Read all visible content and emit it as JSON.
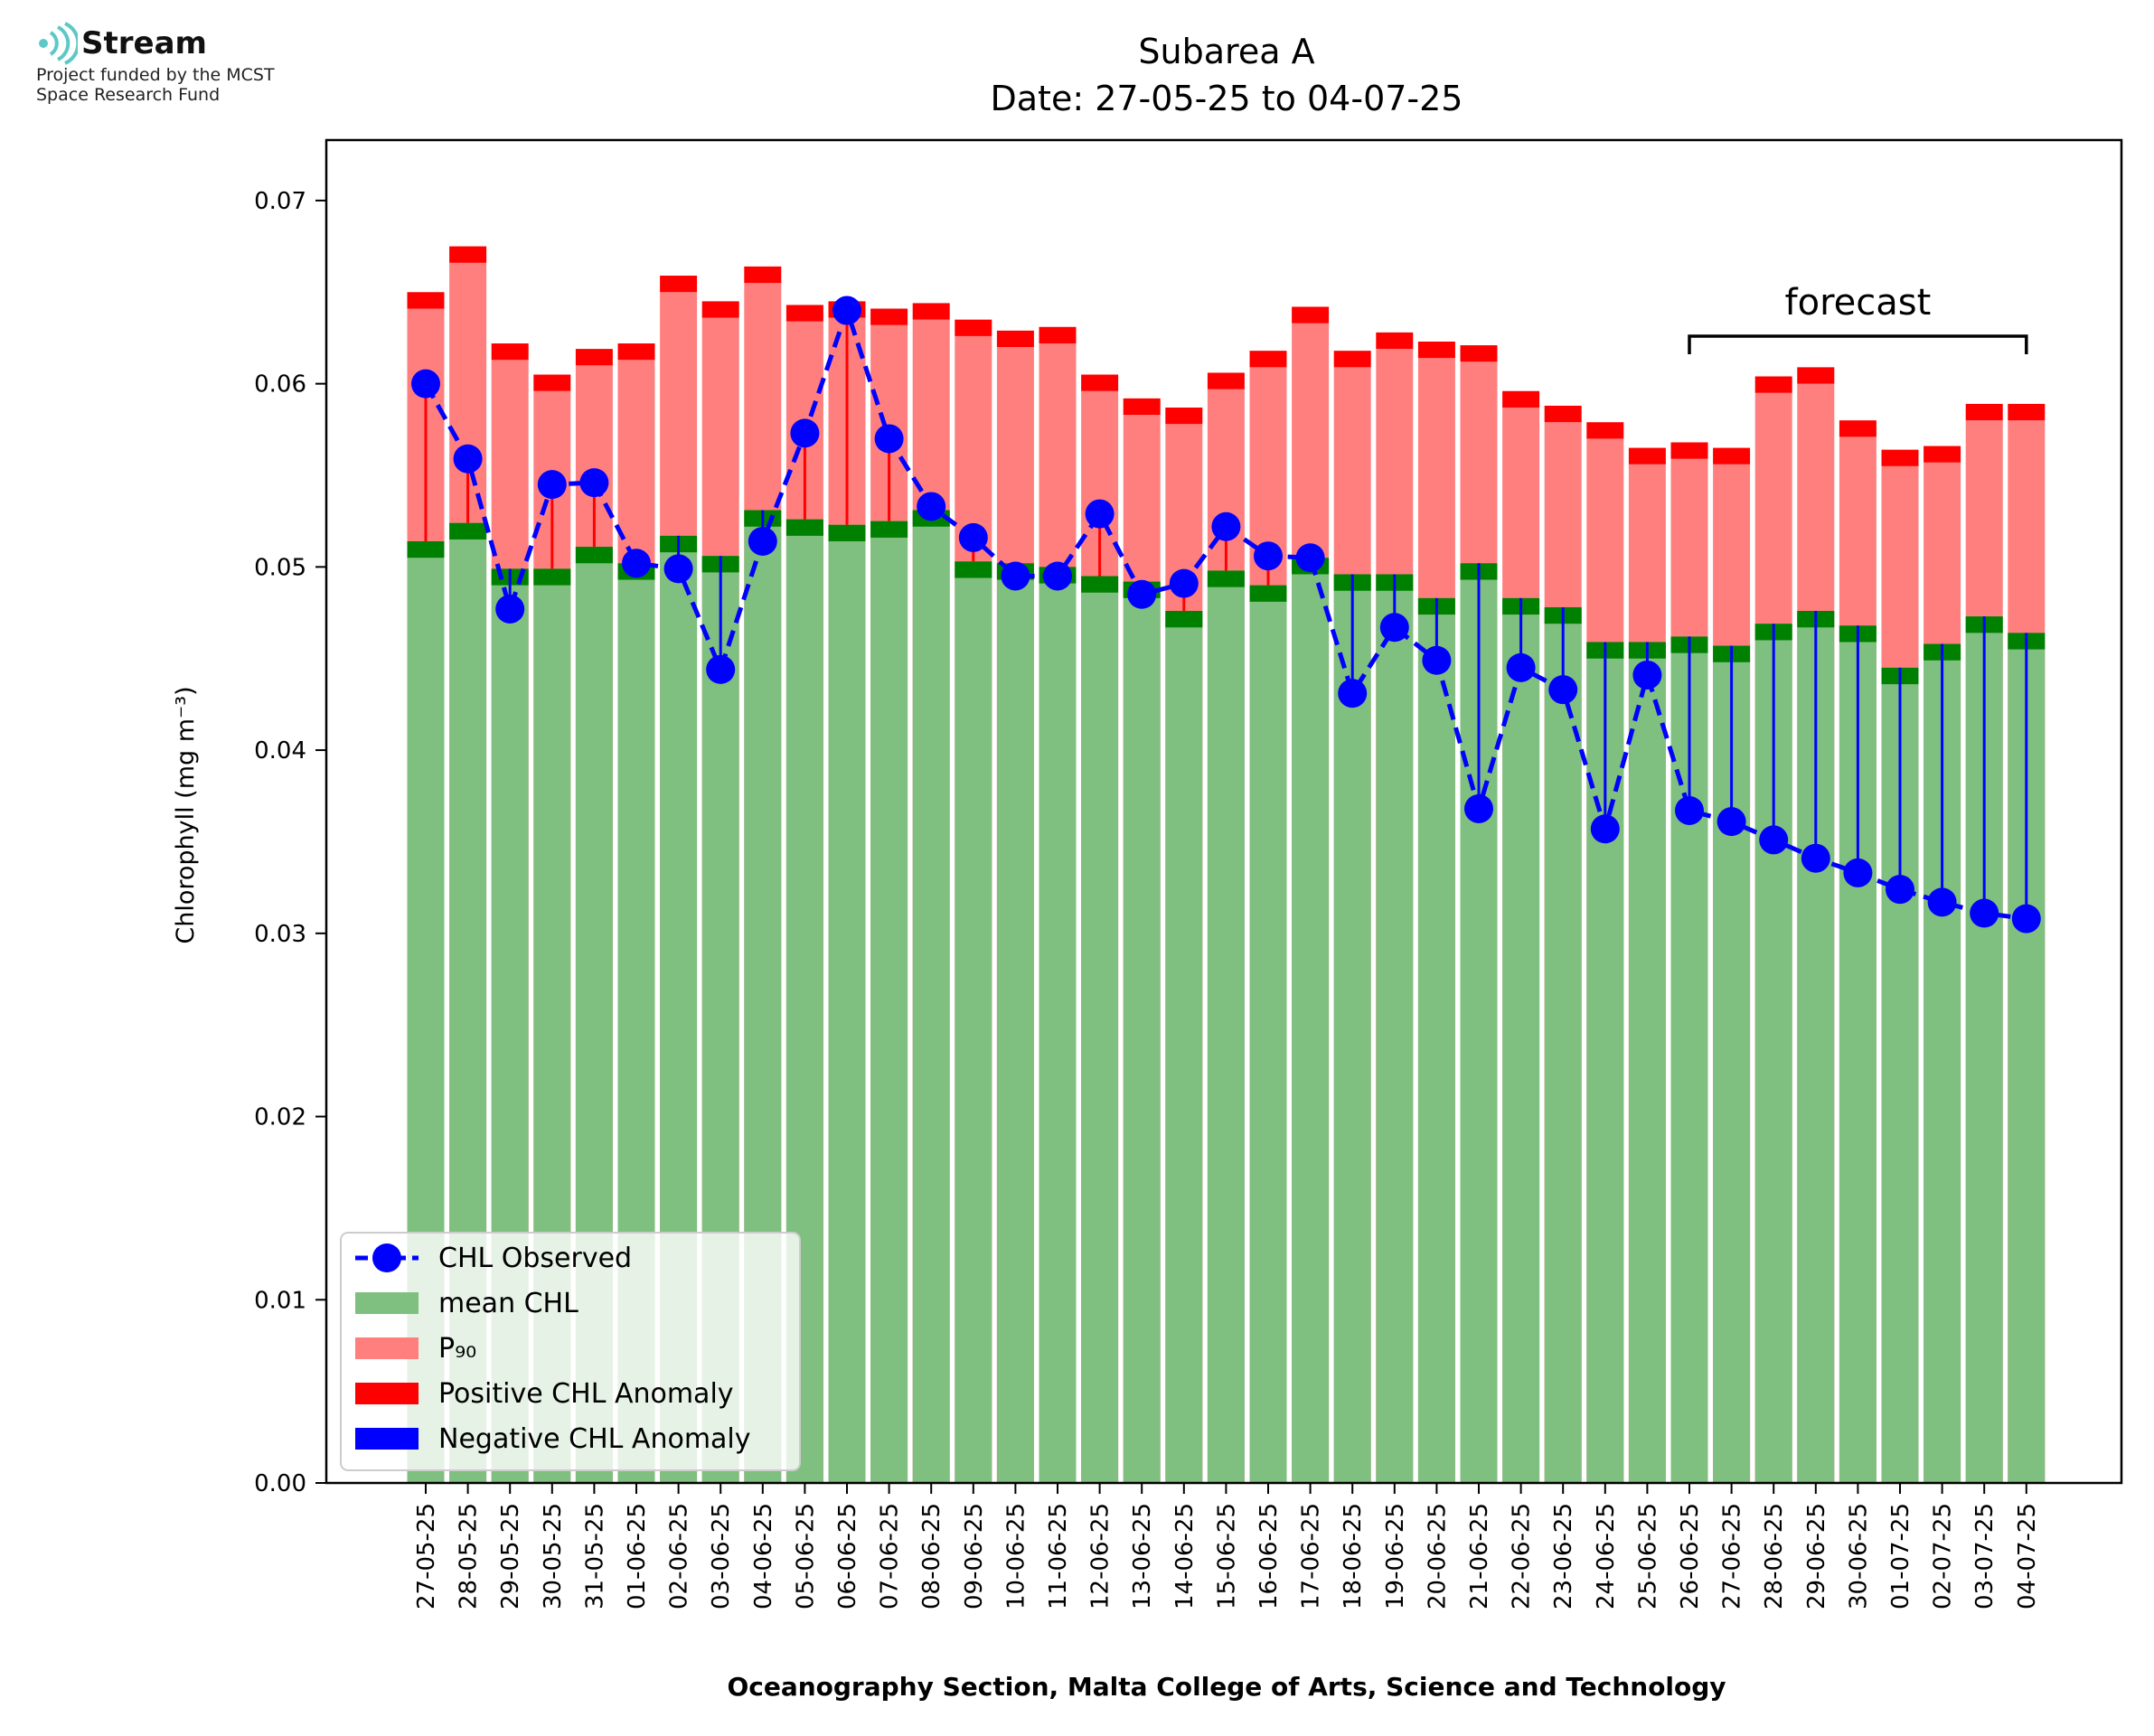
{
  "logo": {
    "brand": "Stream",
    "line1": "Project funded by the MCST",
    "line2": "Space Research Fund"
  },
  "chart_data": {
    "type": "bar",
    "title": "Subarea A",
    "subtitle": "Date: 27-05-25 to 04-07-25",
    "xlabel": "Oceanography Section, Malta College of Arts, Science and Technology",
    "ylabel": "Chlorophyll (mg m⁻³)",
    "ylim": [
      0,
      0.0733
    ],
    "yticks": [
      0.0,
      0.01,
      0.02,
      0.03,
      0.04,
      0.05,
      0.06,
      0.07
    ],
    "ytick_labels": [
      "0.00",
      "0.01",
      "0.02",
      "0.03",
      "0.04",
      "0.05",
      "0.06",
      "0.07"
    ],
    "categories": [
      "27-05-25",
      "28-05-25",
      "29-05-25",
      "30-05-25",
      "31-05-25",
      "01-06-25",
      "02-06-25",
      "03-06-25",
      "04-06-25",
      "05-06-25",
      "06-06-25",
      "07-06-25",
      "08-06-25",
      "09-06-25",
      "10-06-25",
      "11-06-25",
      "12-06-25",
      "13-06-25",
      "14-06-25",
      "15-06-25",
      "16-06-25",
      "17-06-25",
      "18-06-25",
      "19-06-25",
      "20-06-25",
      "21-06-25",
      "22-06-25",
      "23-06-25",
      "24-06-25",
      "25-06-25",
      "26-06-25",
      "27-06-25",
      "28-06-25",
      "29-06-25",
      "30-06-25",
      "01-07-25",
      "02-07-25",
      "03-07-25",
      "04-07-25"
    ],
    "series": [
      {
        "name": "mean CHL",
        "color": "#7fbf7f",
        "values": [
          0.0514,
          0.0524,
          0.0499,
          0.0499,
          0.0511,
          0.0502,
          0.0517,
          0.0506,
          0.0531,
          0.0526,
          0.0523,
          0.0525,
          0.0531,
          0.0503,
          0.0502,
          0.05,
          0.0495,
          0.0492,
          0.0476,
          0.0498,
          0.049,
          0.0505,
          0.0496,
          0.0496,
          0.0483,
          0.0502,
          0.0483,
          0.0478,
          0.0459,
          0.0459,
          0.0462,
          0.0457,
          0.0469,
          0.0476,
          0.0468,
          0.0445,
          0.0458,
          0.0473,
          0.0464
        ]
      },
      {
        "name": "P₉₀",
        "color": "#ff7f7f",
        "values": [
          0.0641,
          0.0666,
          0.0613,
          0.0596,
          0.061,
          0.0613,
          0.065,
          0.0636,
          0.0655,
          0.0634,
          0.0636,
          0.0632,
          0.0635,
          0.0626,
          0.062,
          0.0622,
          0.0596,
          0.0583,
          0.0578,
          0.0597,
          0.0609,
          0.0633,
          0.0609,
          0.0619,
          0.0614,
          0.0612,
          0.0587,
          0.0579,
          0.057,
          0.0556,
          0.0559,
          0.0556,
          0.0595,
          0.06,
          0.0571,
          0.0555,
          0.0557,
          0.058,
          0.058
        ]
      },
      {
        "name": "CHL Observed",
        "color": "#0000ff",
        "values": [
          0.06,
          0.0559,
          0.0477,
          0.0545,
          0.0546,
          0.0502,
          0.0499,
          0.0444,
          0.0514,
          0.0573,
          0.064,
          0.057,
          0.0533,
          0.0516,
          0.0495,
          0.0495,
          0.0529,
          0.0485,
          0.0491,
          0.0522,
          0.0506,
          0.0505,
          0.0431,
          0.0467,
          0.0449,
          0.0368,
          0.0445,
          0.0433,
          0.0357,
          0.0441,
          0.0367,
          0.0361,
          0.0351,
          0.0341,
          0.0333,
          0.0324,
          0.0317,
          0.0311,
          0.0308
        ]
      }
    ],
    "anomaly_colors": {
      "positive": "#ff0000",
      "negative": "#0000ff",
      "mean_band": "#008000"
    },
    "annotation": {
      "text": "forecast",
      "from_category": "26-06-25",
      "to_category": "04-07-25"
    },
    "legend": {
      "position": "lower-left",
      "entries": [
        "CHL Observed",
        "mean CHL",
        "P₉₀",
        "Positive CHL Anomaly",
        "Negative CHL Anomaly"
      ]
    }
  }
}
